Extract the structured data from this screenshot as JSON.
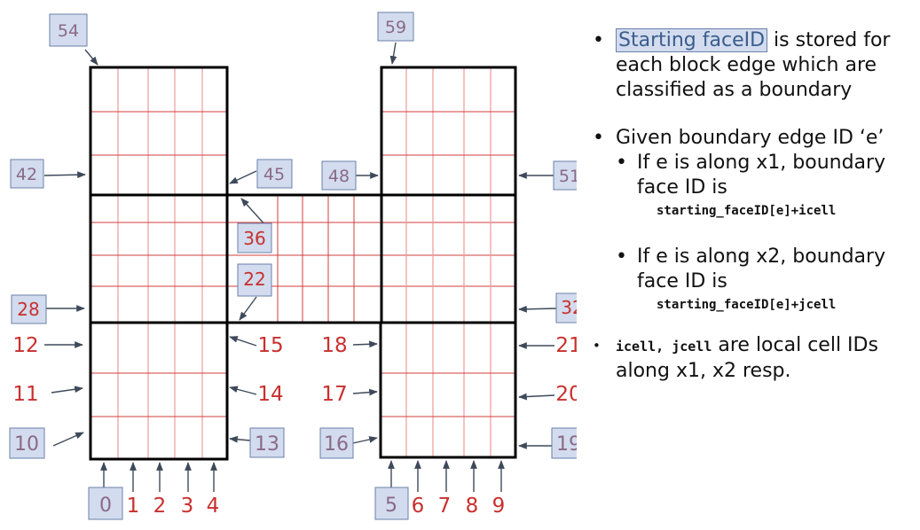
{
  "colors": {
    "grid": "#d23c3c",
    "label_red": "#c8302e",
    "label_box_fill": "#d2dcee",
    "label_box_text": "#8a6a86",
    "highlight_text": "#3b5d8c"
  },
  "boxed_labels": {
    "b54": "54",
    "b59": "59",
    "b42": "42",
    "b45": "45",
    "b48": "48",
    "b51": "51",
    "b36": "36",
    "b22": "22",
    "b28": "28",
    "b32": "32",
    "b10": "10",
    "b13": "13",
    "b16": "16",
    "b19": "19",
    "b0": "0",
    "b5": "5"
  },
  "red_labels": {
    "r12": "12",
    "r11": "11",
    "r15": "15",
    "r14": "14",
    "r18": "18",
    "r17": "17",
    "r21": "21",
    "r20": "20",
    "r1": "1",
    "r2": "2",
    "r3": "3",
    "r4": "4",
    "r6": "6",
    "r7": "7",
    "r8": "8",
    "r9": "9"
  },
  "notes": {
    "bullet1_highlight": "Starting faceID",
    "bullet1_rest": " is stored for  each block edge which are classified as a boundary",
    "bullet2": "Given boundary edge ID ‘e’",
    "sub1": "If e is along x1, boundary face ID is",
    "code1": "starting_faceID[e]+icell",
    "sub2": "If e is along x2, boundary face ID is",
    "code2": "starting_faceID[e]+jcell",
    "bullet3_code": "icell, jcell",
    "bullet3_rest": " are local cell IDs along x1, x2 resp."
  }
}
